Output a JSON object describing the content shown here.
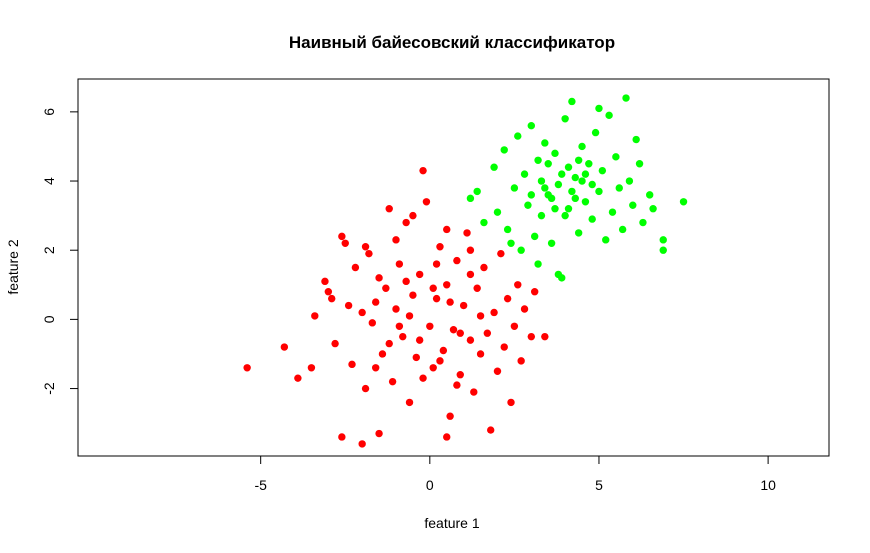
{
  "chart_data": {
    "type": "scatter",
    "title": "Наивный байесовский классификатор",
    "xlabel": "feature 1",
    "ylabel": "feature 2",
    "xlim": [
      -10.4,
      11.8
    ],
    "ylim": [
      -3.95,
      6.95
    ],
    "x_ticks": [
      -5,
      0,
      5,
      10
    ],
    "y_ticks": [
      -2,
      0,
      2,
      4,
      6
    ],
    "grid": false,
    "legend": "none",
    "series": [
      {
        "color": "#ff0000",
        "points": [
          [
            -5.4,
            -1.4
          ],
          [
            -4.3,
            -0.8
          ],
          [
            -3.9,
            -1.7
          ],
          [
            -3.5,
            -1.4
          ],
          [
            -3.4,
            0.1
          ],
          [
            -3.1,
            1.1
          ],
          [
            -3.0,
            0.8
          ],
          [
            -2.9,
            0.6
          ],
          [
            -2.8,
            -0.7
          ],
          [
            -2.6,
            2.4
          ],
          [
            -2.5,
            2.2
          ],
          [
            -2.4,
            0.4
          ],
          [
            -2.3,
            -1.3
          ],
          [
            -2.2,
            1.5
          ],
          [
            -2.0,
            0.2
          ],
          [
            -1.9,
            -2.0
          ],
          [
            -1.8,
            1.9
          ],
          [
            -1.7,
            -0.1
          ],
          [
            -1.6,
            0.5
          ],
          [
            -1.5,
            1.2
          ],
          [
            -1.4,
            -1.0
          ],
          [
            -1.3,
            0.9
          ],
          [
            -1.2,
            3.2
          ],
          [
            -1.1,
            -1.8
          ],
          [
            -1.0,
            0.3
          ],
          [
            -0.9,
            1.6
          ],
          [
            -0.8,
            -0.5
          ],
          [
            -0.7,
            2.8
          ],
          [
            -0.6,
            -2.4
          ],
          [
            -0.5,
            0.7
          ],
          [
            -0.4,
            -1.1
          ],
          [
            -0.3,
            1.3
          ],
          [
            -0.2,
            4.3
          ],
          [
            -0.1,
            3.4
          ],
          [
            0.0,
            -0.2
          ],
          [
            0.1,
            -1.4
          ],
          [
            0.2,
            0.6
          ],
          [
            0.3,
            2.1
          ],
          [
            0.4,
            -0.9
          ],
          [
            0.5,
            1.0
          ],
          [
            0.6,
            -2.8
          ],
          [
            0.7,
            -0.3
          ],
          [
            0.8,
            1.7
          ],
          [
            0.9,
            -1.6
          ],
          [
            1.0,
            0.4
          ],
          [
            1.1,
            2.5
          ],
          [
            1.2,
            -0.6
          ],
          [
            1.3,
            -2.1
          ],
          [
            1.4,
            0.9
          ],
          [
            1.5,
            -1.0
          ],
          [
            1.6,
            1.5
          ],
          [
            1.7,
            -0.4
          ],
          [
            1.8,
            -3.2
          ],
          [
            1.9,
            0.2
          ],
          [
            2.0,
            -1.5
          ],
          [
            2.1,
            1.9
          ],
          [
            2.2,
            -0.8
          ],
          [
            2.3,
            0.6
          ],
          [
            2.4,
            -2.4
          ],
          [
            2.5,
            -0.2
          ],
          [
            2.6,
            1.0
          ],
          [
            2.7,
            -1.2
          ],
          [
            2.8,
            0.3
          ],
          [
            3.0,
            -0.5
          ],
          [
            3.1,
            0.8
          ],
          [
            3.4,
            -0.5
          ],
          [
            -2.6,
            -3.4
          ],
          [
            -2.0,
            -3.6
          ],
          [
            -1.5,
            -3.3
          ],
          [
            0.5,
            -3.4
          ],
          [
            -1.9,
            2.1
          ],
          [
            -1.0,
            2.3
          ],
          [
            -0.5,
            3.0
          ],
          [
            0.5,
            2.6
          ],
          [
            1.2,
            2.0
          ],
          [
            -0.9,
            -0.2
          ],
          [
            -0.6,
            0.1
          ],
          [
            -0.3,
            -0.6
          ],
          [
            0.1,
            0.9
          ],
          [
            0.3,
            -1.2
          ],
          [
            0.6,
            0.5
          ],
          [
            0.9,
            -0.4
          ],
          [
            1.2,
            1.3
          ],
          [
            -1.2,
            -0.7
          ],
          [
            -0.7,
            1.1
          ],
          [
            -0.2,
            -1.7
          ],
          [
            0.2,
            1.6
          ],
          [
            0.8,
            -1.9
          ],
          [
            1.5,
            0.1
          ],
          [
            -1.6,
            -1.4
          ]
        ]
      },
      {
        "color": "#00ff00",
        "points": [
          [
            1.2,
            3.5
          ],
          [
            1.4,
            3.7
          ],
          [
            1.6,
            2.8
          ],
          [
            1.9,
            4.4
          ],
          [
            2.0,
            3.1
          ],
          [
            2.2,
            4.9
          ],
          [
            2.3,
            2.6
          ],
          [
            2.5,
            3.8
          ],
          [
            2.6,
            5.3
          ],
          [
            2.7,
            2.0
          ],
          [
            2.8,
            4.2
          ],
          [
            2.9,
            3.3
          ],
          [
            3.0,
            5.6
          ],
          [
            3.1,
            2.4
          ],
          [
            3.2,
            4.6
          ],
          [
            3.3,
            3.0
          ],
          [
            3.4,
            5.1
          ],
          [
            3.5,
            3.6
          ],
          [
            3.6,
            2.2
          ],
          [
            3.7,
            4.8
          ],
          [
            3.8,
            3.9
          ],
          [
            3.9,
            1.2
          ],
          [
            4.0,
            5.8
          ],
          [
            4.1,
            3.2
          ],
          [
            4.2,
            6.3
          ],
          [
            4.3,
            4.1
          ],
          [
            4.4,
            2.5
          ],
          [
            4.5,
            5.0
          ],
          [
            4.6,
            3.4
          ],
          [
            4.7,
            4.5
          ],
          [
            4.8,
            2.9
          ],
          [
            4.9,
            5.4
          ],
          [
            5.0,
            3.7
          ],
          [
            5.1,
            4.3
          ],
          [
            5.2,
            2.3
          ],
          [
            5.3,
            5.9
          ],
          [
            5.4,
            3.1
          ],
          [
            5.5,
            4.7
          ],
          [
            5.6,
            3.8
          ],
          [
            5.7,
            2.6
          ],
          [
            5.8,
            6.4
          ],
          [
            5.9,
            4.0
          ],
          [
            6.0,
            3.3
          ],
          [
            6.1,
            5.2
          ],
          [
            6.2,
            4.5
          ],
          [
            6.3,
            2.8
          ],
          [
            6.5,
            3.6
          ],
          [
            6.6,
            3.2
          ],
          [
            6.9,
            2.3
          ],
          [
            6.9,
            2.0
          ],
          [
            7.5,
            3.4
          ],
          [
            3.2,
            1.6
          ],
          [
            3.8,
            1.3
          ],
          [
            2.4,
            2.2
          ],
          [
            5.0,
            6.1
          ],
          [
            3.3,
            4.0
          ],
          [
            3.6,
            3.5
          ],
          [
            3.9,
            4.2
          ],
          [
            4.2,
            3.7
          ],
          [
            4.5,
            4.0
          ],
          [
            3.5,
            4.5
          ],
          [
            4.0,
            3.0
          ],
          [
            4.4,
            4.6
          ],
          [
            3.7,
            3.2
          ],
          [
            4.1,
            4.4
          ],
          [
            3.4,
            3.8
          ],
          [
            4.3,
            3.5
          ],
          [
            4.6,
            4.2
          ],
          [
            3.0,
            3.6
          ],
          [
            4.8,
            3.9
          ]
        ]
      }
    ]
  }
}
